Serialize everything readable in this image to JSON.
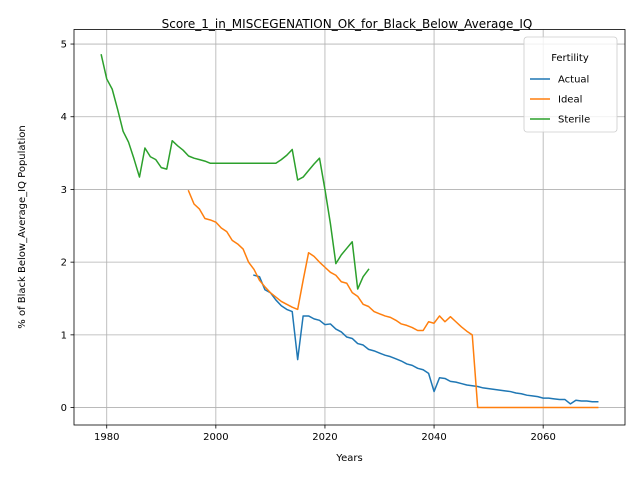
{
  "chart_data": {
    "type": "line",
    "title": "Score_1_in_MISCEGENATION_OK_for_Black_Below_Average_IQ",
    "xlabel": "Years",
    "ylabel": "% of Black Below_Average_IQ Population",
    "xlim": [
      1974,
      2075
    ],
    "ylim": [
      -0.24,
      5.2
    ],
    "xticks": [
      1980,
      2000,
      2020,
      2040,
      2060
    ],
    "yticks": [
      0,
      1,
      2,
      3,
      4,
      5
    ],
    "grid": true,
    "legend": {
      "title": "Fertility",
      "position": "top-right"
    },
    "series": [
      {
        "name": "Actual",
        "color": "#1f77b4",
        "x": [
          2007,
          2008,
          2009,
          2010,
          2011,
          2012,
          2013,
          2014,
          2015,
          2016,
          2017,
          2018,
          2019,
          2020,
          2021,
          2022,
          2023,
          2024,
          2025,
          2026,
          2027,
          2028,
          2029,
          2030,
          2031,
          2032,
          2033,
          2034,
          2035,
          2036,
          2037,
          2038,
          2039,
          2040,
          2041,
          2042,
          2043,
          2044,
          2045,
          2046,
          2047,
          2048,
          2049,
          2050,
          2051,
          2052,
          2053,
          2054,
          2055,
          2056,
          2057,
          2058,
          2059,
          2060,
          2061,
          2062,
          2063,
          2064,
          2065,
          2066,
          2067,
          2068,
          2069,
          2070
        ],
        "y": [
          1.82,
          1.8,
          1.62,
          1.58,
          1.48,
          1.4,
          1.35,
          1.32,
          0.66,
          1.26,
          1.26,
          1.22,
          1.2,
          1.14,
          1.15,
          1.08,
          1.04,
          0.97,
          0.95,
          0.88,
          0.86,
          0.8,
          0.78,
          0.75,
          0.72,
          0.7,
          0.67,
          0.64,
          0.6,
          0.58,
          0.54,
          0.52,
          0.47,
          0.22,
          0.41,
          0.4,
          0.36,
          0.35,
          0.33,
          0.31,
          0.3,
          0.29,
          0.27,
          0.26,
          0.25,
          0.24,
          0.23,
          0.22,
          0.2,
          0.19,
          0.17,
          0.16,
          0.15,
          0.13,
          0.13,
          0.12,
          0.11,
          0.11,
          0.05,
          0.1,
          0.09,
          0.09,
          0.08,
          0.08
        ]
      },
      {
        "name": "Ideal",
        "color": "#ff7f0e",
        "x": [
          1995,
          1996,
          1997,
          1998,
          1999,
          2000,
          2001,
          2002,
          2003,
          2004,
          2005,
          2006,
          2007,
          2008,
          2009,
          2010,
          2011,
          2012,
          2013,
          2014,
          2015,
          2016,
          2017,
          2018,
          2019,
          2020,
          2021,
          2022,
          2023,
          2024,
          2025,
          2026,
          2027,
          2028,
          2029,
          2030,
          2031,
          2032,
          2033,
          2034,
          2035,
          2036,
          2037,
          2038,
          2039,
          2040,
          2041,
          2042,
          2043,
          2044,
          2045,
          2046,
          2047,
          2048,
          2050,
          2055,
          2060,
          2065,
          2070
        ],
        "y": [
          2.98,
          2.8,
          2.73,
          2.6,
          2.58,
          2.55,
          2.47,
          2.42,
          2.3,
          2.25,
          2.18,
          2.0,
          1.9,
          1.75,
          1.66,
          1.58,
          1.52,
          1.46,
          1.42,
          1.38,
          1.35,
          1.75,
          2.13,
          2.08,
          2.0,
          1.93,
          1.86,
          1.82,
          1.73,
          1.71,
          1.58,
          1.53,
          1.42,
          1.39,
          1.32,
          1.29,
          1.26,
          1.24,
          1.2,
          1.15,
          1.13,
          1.1,
          1.06,
          1.06,
          1.18,
          1.16,
          1.26,
          1.18,
          1.25,
          1.18,
          1.11,
          1.05,
          1.0,
          0.0,
          0.0,
          0.0,
          0.0,
          0.0,
          0.0
        ]
      },
      {
        "name": "Sterile",
        "color": "#2ca02c",
        "x": [
          1979,
          1980,
          1981,
          1982,
          1983,
          1984,
          1985,
          1986,
          1987,
          1988,
          1989,
          1990,
          1991,
          1992,
          1993,
          1994,
          1995,
          1996,
          1997,
          1998,
          1999,
          2000,
          2005,
          2010,
          2011,
          2012,
          2013,
          2014,
          2015,
          2016,
          2017,
          2018,
          2019,
          2020,
          2021,
          2022,
          2023,
          2024,
          2025,
          2026,
          2027,
          2028
        ],
        "y": [
          4.85,
          4.52,
          4.38,
          4.1,
          3.8,
          3.65,
          3.42,
          3.17,
          3.57,
          3.45,
          3.41,
          3.3,
          3.28,
          3.67,
          3.6,
          3.54,
          3.46,
          3.43,
          3.41,
          3.39,
          3.36,
          3.36,
          3.36,
          3.36,
          3.36,
          3.41,
          3.47,
          3.55,
          3.13,
          3.17,
          3.26,
          3.35,
          3.43,
          3.0,
          2.53,
          1.98,
          2.1,
          2.19,
          2.28,
          1.63,
          1.8,
          1.9
        ]
      }
    ]
  }
}
